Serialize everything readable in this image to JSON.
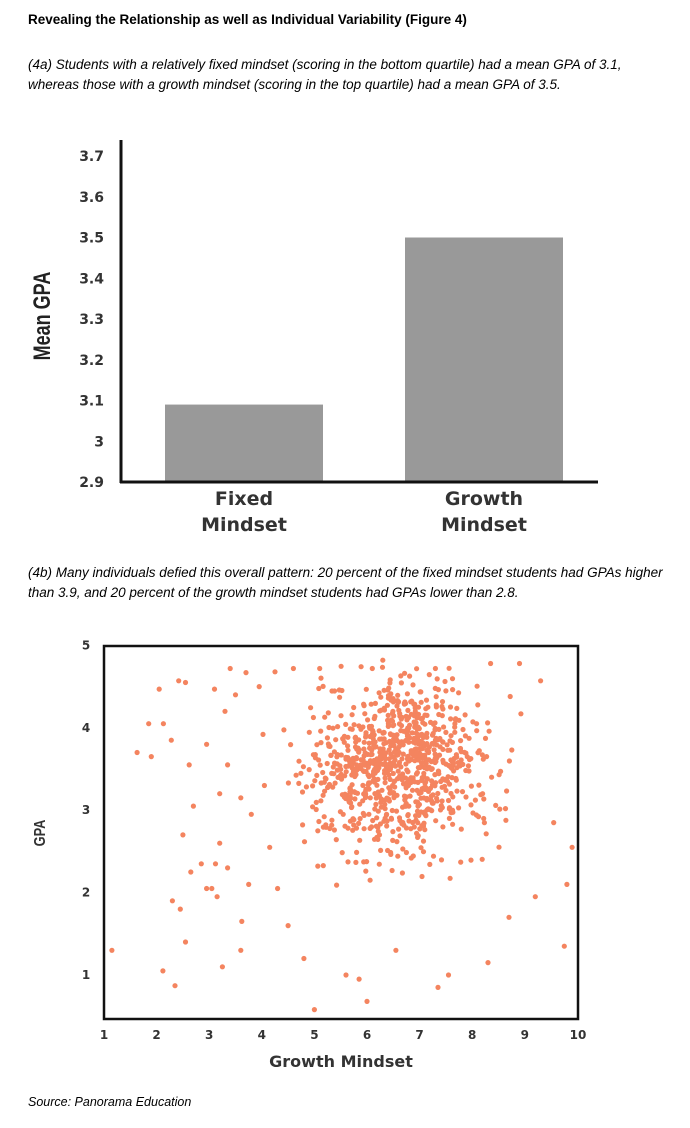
{
  "heading": "Revealing the Relationship as well as Individual Variability (Figure 4)",
  "caption_a": "(4a) Students with a relatively fixed mindset (scoring in the bottom quartile) had a mean GPA of 3.1, whereas those with a growth mindset (scoring in the top quartile) had a mean GPA of 3.5.",
  "caption_b": "(4b) Many individuals defied this overall pattern: 20 percent of the fixed mindset students had GPAs higher than 3.9, and 20 percent of the growth mindset students had GPAs lower than 2.8.",
  "source": "Source: Panorama Education",
  "colors": {
    "bar": "#999999",
    "point": "#f4845f",
    "axis": "#111111"
  },
  "chart_data": [
    {
      "type": "bar",
      "title": "",
      "ylabel": "Mean GPA",
      "xlabel": "",
      "ylim": [
        2.9,
        3.7
      ],
      "yticks": [
        "2.9",
        "3",
        "3.1",
        "3.2",
        "3.3",
        "3.4",
        "3.5",
        "3.6",
        "3.7"
      ],
      "categories": [
        [
          "Fixed",
          "Mindset"
        ],
        [
          "Growth",
          "Mindset"
        ]
      ],
      "values": [
        3.09,
        3.5
      ]
    },
    {
      "type": "scatter",
      "title": "",
      "xlabel": "Growth Mindset",
      "ylabel": "GPA",
      "xlim": [
        1,
        10
      ],
      "ylim": [
        0.5,
        5
      ],
      "xticks": [
        "1",
        "2",
        "3",
        "4",
        "5",
        "6",
        "7",
        "8",
        "9",
        "10"
      ],
      "yticks": [
        "1",
        "2",
        "3",
        "4",
        "5"
      ],
      "series_note": "approx. 1000 students",
      "points": [
        [
          1.15,
          1.3
        ],
        [
          1.63,
          3.7
        ],
        [
          1.9,
          3.65
        ],
        [
          1.85,
          4.05
        ],
        [
          2.13,
          4.05
        ],
        [
          2.3,
          1.9
        ],
        [
          2.12,
          1.05
        ],
        [
          2.35,
          0.87
        ],
        [
          2.05,
          4.47
        ],
        [
          2.28,
          3.85
        ],
        [
          2.42,
          4.57
        ],
        [
          2.55,
          4.55
        ],
        [
          2.45,
          1.8
        ],
        [
          2.55,
          1.4
        ],
        [
          2.62,
          3.55
        ],
        [
          2.7,
          3.05
        ],
        [
          2.85,
          2.35
        ],
        [
          2.95,
          3.8
        ],
        [
          3.1,
          4.47
        ],
        [
          3.05,
          2.05
        ],
        [
          3.12,
          2.35
        ],
        [
          3.2,
          3.2
        ],
        [
          3.25,
          1.1
        ],
        [
          3.35,
          2.3
        ],
        [
          3.5,
          4.4
        ],
        [
          3.6,
          1.3
        ],
        [
          3.62,
          1.65
        ],
        [
          3.75,
          2.1
        ],
        [
          3.4,
          4.72
        ],
        [
          3.7,
          4.67
        ],
        [
          3.95,
          4.5
        ],
        [
          4.25,
          4.68
        ],
        [
          4.6,
          4.72
        ],
        [
          5.1,
          4.72
        ],
        [
          6.3,
          4.82
        ],
        [
          7.3,
          4.72
        ],
        [
          8.35,
          4.78
        ],
        [
          8.9,
          4.78
        ],
        [
          9.3,
          4.57
        ],
        [
          4.5,
          1.6
        ],
        [
          4.8,
          1.2
        ],
        [
          5.0,
          0.58
        ],
        [
          5.6,
          1.0
        ],
        [
          5.85,
          0.95
        ],
        [
          6.0,
          0.68
        ],
        [
          6.55,
          1.3
        ],
        [
          7.35,
          0.85
        ],
        [
          7.55,
          1.0
        ],
        [
          8.3,
          1.15
        ],
        [
          8.7,
          1.7
        ],
        [
          9.2,
          1.95
        ],
        [
          9.8,
          2.1
        ],
        [
          9.9,
          2.55
        ],
        [
          9.95,
          2.75
        ],
        [
          9.55,
          2.85
        ],
        [
          9.75,
          1.35
        ],
        [
          3.35,
          3.55
        ],
        [
          3.6,
          3.15
        ],
        [
          3.8,
          2.95
        ],
        [
          4.05,
          3.3
        ],
        [
          4.15,
          2.55
        ],
        [
          4.3,
          2.05
        ],
        [
          3.3,
          4.2
        ],
        [
          3.2,
          2.6
        ],
        [
          2.95,
          2.05
        ],
        [
          3.15,
          1.95
        ],
        [
          2.5,
          2.7
        ],
        [
          2.65,
          2.25
        ]
      ]
    }
  ]
}
